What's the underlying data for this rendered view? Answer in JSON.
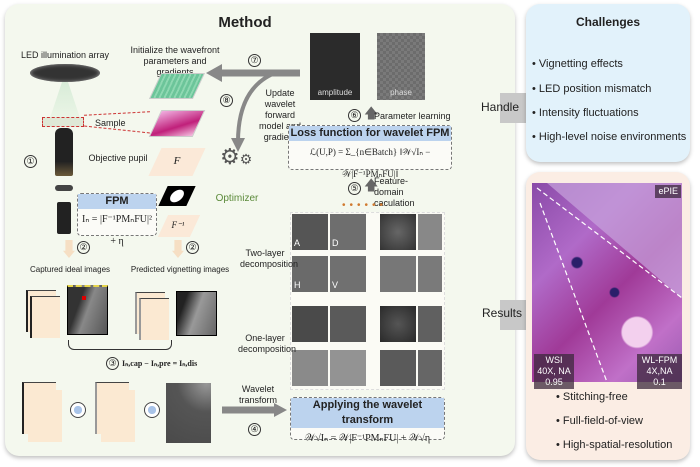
{
  "method": {
    "title": "Method",
    "led_label": "LED illumination array",
    "init_label": "Initialize the wavefront parameters and gradients",
    "sample_label": "Sample",
    "objective_label": "Objective pupil",
    "pupil_symbol": "F",
    "pupil_inverse_symbol": "F⁻¹",
    "step1": "①",
    "step2": "②",
    "step3": "③",
    "step4": "④",
    "step5": "⑤",
    "step6": "⑥",
    "step7": "⑦",
    "step8": "⑧",
    "update_label": "Update wavelet forward model and gradient",
    "optimizer_label": "Optimizer",
    "amplitude_label": "amplitude",
    "phase_label": "phase",
    "param_learning": "Parameter learning",
    "loss_title": "Loss function for wavelet FPM",
    "loss_eq": "ℒ(U,P) = Σ_{n∈Batch} ‖𝒲√Iₙ − 𝒲|F⁻¹PMₙFU|‖",
    "feature_error": "Feature-domain caculation error",
    "fpm_title": "FPM",
    "fpm_eq": "Iₙ = |F⁻¹PMₙFU|² + η",
    "captured_label": "Captured ideal images",
    "predicted_label": "Predicted vignetting images",
    "diff_eq": "Iₙ,cap − Iₙ,pre = Iₙ,dis",
    "two_layer": "Two-layer decomposition",
    "one_layer": "One-layer decomposition",
    "subbands": [
      "A",
      "D",
      "H",
      "V"
    ],
    "wavelet_transform": "Wavelet transform",
    "apply_title": "Applying the wavelet transform",
    "apply_eq": "𝒲√Iₙ = 𝒲|F⁻¹PMₙFU| + 𝒲√η"
  },
  "arrows": {
    "handle": "Handle",
    "results": "Results"
  },
  "challenges": {
    "title": "Challenges",
    "items": [
      "Vignetting effects",
      "LED position mismatch",
      "Intensity fluctuations",
      "High-level noise environments"
    ]
  },
  "results": {
    "tag_top": "ePIE",
    "tag_left": "WSI 40X, NA 0.95",
    "tag_right": "WL-FPM 4X,NA 0.1",
    "items": [
      "Stitching-free",
      "Full-field-of-view",
      "High-spatial-resolution"
    ]
  },
  "colors": {
    "method_bg": "#f4f8ee",
    "challenges_bg": "#e2f2fb",
    "results_bg": "#fbede4",
    "header_blue": "#bcd3ee",
    "optimizer_green": "#5b8a3a"
  }
}
